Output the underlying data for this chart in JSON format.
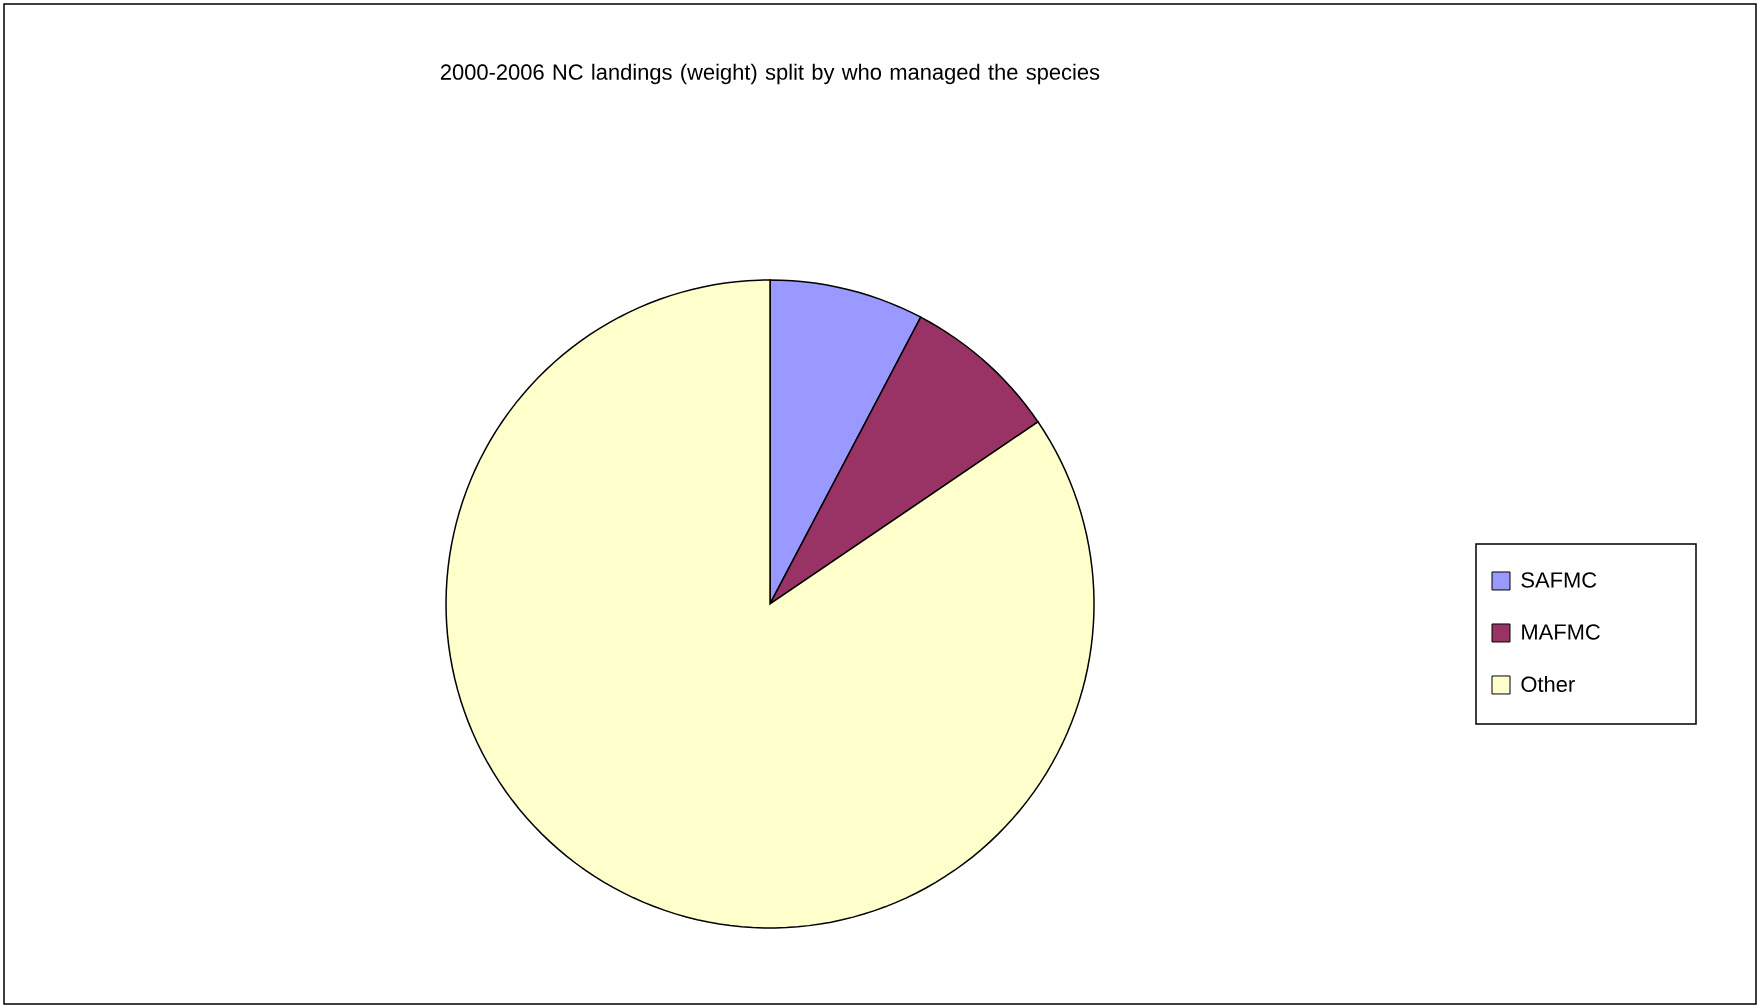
{
  "chart_data": {
    "type": "pie",
    "title": "2000-2006 NC landings (weight) split by who managed the species",
    "categories": [
      "SAFMC",
      "MAFMC",
      "Other"
    ],
    "values": [
      7.7,
      7.8,
      84.5
    ],
    "colors": [
      "#9999ff",
      "#993366",
      "#ffffcc"
    ],
    "legend": "right"
  }
}
